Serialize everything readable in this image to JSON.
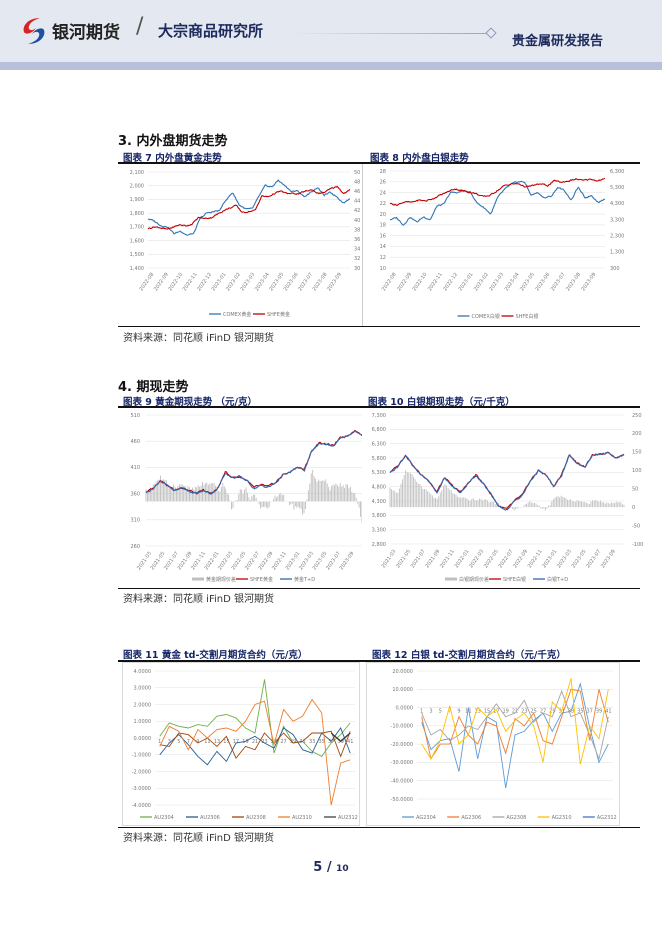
{
  "header": {
    "brand": "银河期货",
    "separator": "/",
    "institute": "大宗商品研究所",
    "report_type": "贵金属研发报告",
    "logo_icon": "yinhe-logo-icon"
  },
  "sections": [
    {
      "title": "3.   内外盘期货走势"
    },
    {
      "title": "4.   期现走势"
    }
  ],
  "source_text": "资料来源：同花顺 iFinD    银河期货",
  "page": {
    "current": "5",
    "sep": " / ",
    "total": "10"
  },
  "charts": {
    "c7": {
      "title": "图表  7 内外盘黄金走势",
      "left_ticks": [
        "2,100",
        "2,000",
        "1,900",
        "1,800",
        "1,700",
        "1,600",
        "1,500",
        "1,400"
      ],
      "left_range": [
        1400,
        2100
      ],
      "right_ticks": [
        "500",
        "480",
        "460",
        "440",
        "420",
        "400",
        "380",
        "360",
        "340",
        "320",
        "300"
      ],
      "right_range": [
        300,
        500
      ],
      "x_ticks": [
        "2022-08",
        "2022-09",
        "2022-10",
        "2022-11",
        "2022-12",
        "2023-01",
        "2023-02",
        "2023-03",
        "2023-04",
        "2023-05",
        "2023-06",
        "2023-07",
        "2023-08",
        "2023-09"
      ],
      "series": [
        {
          "name": "COMEX黄金",
          "color": "#2e75b6",
          "axis": "left",
          "values": [
            1760,
            1740,
            1710,
            1700,
            1650,
            1670,
            1640,
            1650,
            1760,
            1800,
            1810,
            1820,
            1900,
            1950,
            1860,
            1830,
            1830,
            1920,
            2000,
            1990,
            2040,
            2000,
            1960,
            1960,
            1920,
            1950,
            1990,
            1930,
            1950,
            1920,
            1875,
            1905
          ]
        },
        {
          "name": "SHFE黄金",
          "color": "#c00000",
          "axis": "right",
          "values": [
            382,
            386,
            384,
            380,
            385,
            390,
            388,
            392,
            405,
            403,
            405,
            412,
            420,
            425,
            430,
            415,
            418,
            420,
            450,
            448,
            455,
            460,
            455,
            455,
            455,
            460,
            463,
            455,
            458,
            465,
            470,
            455,
            462
          ]
        }
      ]
    },
    "c8": {
      "title": "图表  8 内外盘白银走势",
      "left_ticks": [
        "28",
        "26",
        "24",
        "22",
        "20",
        "18",
        "16",
        "14",
        "12",
        "10"
      ],
      "left_range": [
        10,
        28
      ],
      "right_ticks": [
        "6,300",
        "5,300",
        "4,300",
        "3,300",
        "2,300",
        "1,300",
        "300"
      ],
      "right_range": [
        300,
        6300
      ],
      "x_ticks": [
        "2022-08",
        "2022-09",
        "2022-10",
        "2022-11",
        "2022-12",
        "2023-01",
        "2023-02",
        "2023-03",
        "2023-04",
        "2023-05",
        "2023-06",
        "2023-07",
        "2023-08",
        "2023-09"
      ],
      "series": [
        {
          "name": "COMEX白银",
          "color": "#2e75b6",
          "axis": "left",
          "values": [
            19,
            19.3,
            18,
            19.5,
            18.5,
            19.5,
            19,
            21.5,
            21.8,
            24,
            24,
            24.3,
            24,
            22,
            21.2,
            20,
            23,
            24.5,
            25.5,
            26,
            26,
            23.5,
            24,
            23,
            23.3,
            25,
            24.3,
            22.6,
            25,
            23,
            23.5,
            22.2,
            22.8
          ]
        },
        {
          "name": "SHFE白银",
          "color": "#c00000",
          "axis": "right",
          "values": [
            4300,
            4200,
            4400,
            4350,
            4500,
            4450,
            4600,
            4800,
            5000,
            5200,
            5100,
            5000,
            4900,
            4700,
            4800,
            5100,
            5400,
            5500,
            5500,
            5300,
            5400,
            5500,
            5400,
            5700,
            5600,
            5700,
            5800,
            5700,
            5800,
            5700,
            5800
          ]
        }
      ]
    },
    "c9": {
      "title": "图表  9 黄金期现走势  （元/克）",
      "left_ticks": [
        "510",
        "460",
        "410",
        "360",
        "310",
        "260"
      ],
      "left_range": [
        260,
        510
      ],
      "x_ticks": [
        "2021-03",
        "2021-05",
        "2021-07",
        "2021-09",
        "2021-11",
        "2022-01",
        "2022-03",
        "2022-05",
        "2022-07",
        "2022-09",
        "2022-11",
        "2023-01",
        "2023-03",
        "2023-05",
        "2023-07",
        "2023-09"
      ],
      "bars": {
        "name": "黄金期现价差",
        "color": "#bfbfbf",
        "range": [
          -30,
          50
        ],
        "values": [
          10,
          20,
          28,
          15,
          20,
          18,
          15,
          12,
          20,
          15,
          12,
          18,
          -10,
          12,
          10,
          5,
          -5,
          -8,
          5,
          8,
          -5,
          -10,
          -15,
          30,
          25,
          20,
          15,
          22,
          18,
          10,
          -20
        ]
      },
      "series": [
        {
          "name": "SHFE黄金",
          "color": "#c00000",
          "axis": "left",
          "values": [
            363,
            370,
            386,
            376,
            366,
            372,
            366,
            360,
            366,
            360,
            370,
            401,
            391,
            392,
            386,
            371,
            376,
            373,
            381,
            396,
            401,
            411,
            406,
            441,
            456,
            456,
            451,
            466,
            471,
            481,
            471
          ]
        },
        {
          "name": "黄金T+D",
          "color": "#2f67b1",
          "axis": "left",
          "values": [
            362,
            370,
            385,
            375,
            365,
            372,
            365,
            360,
            365,
            360,
            370,
            400,
            390,
            392,
            385,
            370,
            375,
            372,
            380,
            395,
            400,
            410,
            405,
            440,
            455,
            455,
            450,
            465,
            470,
            480,
            470
          ]
        }
      ]
    },
    "c10": {
      "title": "图表  10 白银期现走势（元/千克）",
      "left_ticks": [
        "7,300",
        "6,800",
        "6,300",
        "5,800",
        "5,300",
        "4,800",
        "4,300",
        "3,800",
        "3,300",
        "2,800"
      ],
      "left_range": [
        2800,
        7300
      ],
      "right_ticks": [
        "250",
        "200",
        "150",
        "100",
        "50",
        "0",
        "-50",
        "-100"
      ],
      "right_range": [
        -100,
        250
      ],
      "x_ticks": [
        "2021-03",
        "2021-05",
        "2021-07",
        "2021-09",
        "2021-11",
        "2022-01",
        "2022-03",
        "2022-05",
        "2022-07",
        "2022-09",
        "2022-11",
        "2023-01",
        "2023-03",
        "2023-05",
        "2023-07",
        "2023-09"
      ],
      "bars": {
        "name": "白银期现价差",
        "color": "#bfbfbf",
        "axis": "right",
        "values": [
          50,
          40,
          100,
          80,
          60,
          40,
          20,
          60,
          40,
          20,
          20,
          20,
          20,
          15,
          5,
          0,
          -5,
          0,
          15,
          5,
          -10,
          20,
          30,
          15,
          20,
          10,
          15,
          20,
          10,
          15,
          10
        ]
      },
      "series": [
        {
          "name": "SHFE白银",
          "color": "#c00000",
          "axis": "left",
          "values": [
            5310,
            5520,
            5920,
            5520,
            5210,
            5010,
            4620,
            5110,
            4820,
            4610,
            4910,
            5210,
            4910,
            4510,
            4110,
            4010,
            4310,
            4510,
            5010,
            5360,
            5210,
            4810,
            5210,
            5910,
            5610,
            5510,
            5910,
            5910,
            6010,
            5810,
            5910
          ]
        },
        {
          "name": "白银T+D",
          "color": "#2f67b1",
          "axis": "left",
          "values": [
            5300,
            5500,
            5900,
            5500,
            5200,
            5000,
            4600,
            5100,
            4800,
            4600,
            4900,
            5200,
            4900,
            4500,
            4100,
            4000,
            4300,
            4500,
            5000,
            5350,
            5200,
            4800,
            5200,
            5900,
            5600,
            5500,
            5900,
            5900,
            6000,
            5800,
            5900
          ]
        }
      ]
    },
    "c11": {
      "title": "图表  11 黄金 td-交割月期货合约（元/克）",
      "left_ticks": [
        "4.0000",
        "3.0000",
        "2.0000",
        "1.0000",
        "0.0000",
        "-1.0000",
        "-2.0000",
        "-3.0000",
        "-4.0000"
      ],
      "left_range": [
        -4,
        4
      ],
      "x_ticks": [
        "1",
        "3",
        "5",
        "7",
        "9",
        "11",
        "13",
        "15",
        "17",
        "19",
        "21",
        "23",
        "25",
        "27",
        "29",
        "31",
        "33",
        "35",
        "37",
        "39",
        "41"
      ],
      "series": [
        {
          "name": "AU2304",
          "color": "#70ad47",
          "values": [
            0.1,
            0.9,
            0.7,
            0.6,
            0.8,
            0.7,
            1.3,
            1.4,
            1.2,
            0.6,
            0.3,
            3.5,
            -0.9,
            0.7,
            -0.3,
            -0.2,
            -0.8,
            -1.1,
            -0.3,
            0.2,
            0.9
          ]
        },
        {
          "name": "AU2306",
          "color": "#255e91",
          "values": [
            -1,
            -0.3,
            0.2,
            -0.4,
            -1.1,
            -1.6,
            -0.8,
            -1.4,
            -0.3,
            -0.2,
            0.1,
            -0.3,
            -0.6,
            0.6,
            0.2,
            -0.7,
            -0.9,
            0.3,
            -0.2,
            0.6,
            -0.9
          ]
        },
        {
          "name": "AU2308",
          "color": "#9e480e",
          "values": [
            -0.4,
            -0.5,
            0.3,
            0.2,
            -0.3,
            0,
            -0.5,
            0.1,
            -1.2,
            -0.5,
            -0.7,
            0.3,
            -0.3,
            0.3,
            -0.3,
            -0.2,
            0.3,
            0.3,
            0.4,
            -1.1,
            0.4
          ]
        },
        {
          "name": "AU2310",
          "color": "#ed7d31",
          "values": [
            -0.5,
            0.7,
            0.4,
            -0.7,
            0.5,
            0,
            0.5,
            0.6,
            0.4,
            1,
            2,
            2.2,
            -0.4,
            1.7,
            1,
            1.3,
            2.3,
            1.5,
            -4,
            -1.5,
            -1.3
          ]
        },
        {
          "name": "AU2312",
          "color": "#404040",
          "values": [
            null,
            null,
            null,
            null,
            null,
            null,
            null,
            null,
            null,
            null,
            null,
            null,
            null,
            null,
            null,
            null,
            null,
            null,
            0.3,
            -0.2,
            0.3
          ]
        }
      ]
    },
    "c12": {
      "title": "图表  12 白银 td-交割月期货合约（元/千克）",
      "left_ticks": [
        "20.0000",
        "10.0000",
        "0.0000",
        "-10.0000",
        "-20.0000",
        "-30.0000",
        "-40.0000",
        "-50.0000"
      ],
      "left_range": [
        -50,
        20
      ],
      "x_ticks": [
        "1",
        "3",
        "5",
        "7",
        "9",
        "11",
        "13",
        "15",
        "17",
        "19",
        "21",
        "23",
        "25",
        "27",
        "29",
        "31",
        "33",
        "35",
        "37",
        "39",
        "41"
      ],
      "series": [
        {
          "name": "AG2304",
          "color": "#5b9bd5",
          "values": [
            -8,
            -23,
            -18,
            -17,
            -35,
            0,
            -28,
            -5,
            -8,
            -44,
            -15,
            -13,
            -7,
            -3,
            -13,
            -3,
            -2,
            13,
            -11,
            -30,
            -20
          ]
        },
        {
          "name": "AG2306",
          "color": "#ed7d31",
          "values": [
            -5,
            -28,
            -20,
            -20,
            -5,
            -15,
            -20,
            -8,
            -10,
            -25,
            -6,
            -10,
            -3,
            -18,
            -20,
            -5,
            10,
            9,
            -18,
            10,
            -8
          ]
        },
        {
          "name": "AG2308",
          "color": "#a5a5a5",
          "values": [
            -3,
            -15,
            -12,
            -18,
            -15,
            -10,
            -12,
            -5,
            2,
            -5,
            -3,
            4,
            -8,
            -3,
            -5,
            9,
            -5,
            -3,
            -15,
            -28,
            -5
          ]
        },
        {
          "name": "AG2310",
          "color": "#ffc000",
          "values": [
            -20,
            -28,
            -18,
            1,
            -20,
            -15,
            0,
            -5,
            -1,
            -13,
            -7,
            -3,
            -10,
            -30,
            3,
            -2,
            16,
            -31,
            -10,
            -17,
            10
          ]
        },
        {
          "name": "AG2312",
          "color": "#4472c4",
          "values": []
        }
      ]
    }
  }
}
